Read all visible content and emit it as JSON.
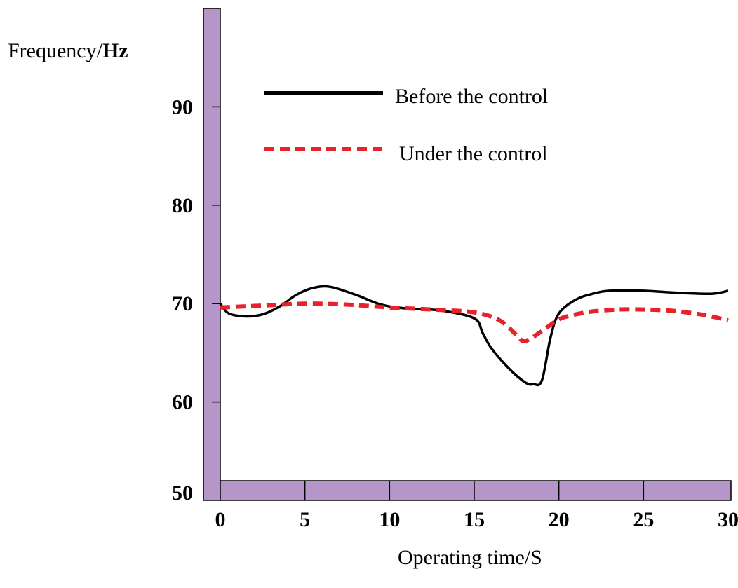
{
  "chart_data": {
    "type": "line",
    "ylabel_prefix": "Frequency/",
    "ylabel_unit": "Hz",
    "xlabel": "Operating time/S",
    "xlim": [
      0,
      30
    ],
    "ylim": [
      50,
      100
    ],
    "xticks": [
      0,
      5,
      10,
      15,
      20,
      25,
      30
    ],
    "yticks": [
      50,
      60,
      70,
      80,
      90
    ],
    "grid": false,
    "legend_position": "top-right",
    "axis_bar_color": "#b497c8",
    "series": [
      {
        "name": "Before the control",
        "color": "#000000",
        "style": "solid",
        "x": [
          0,
          0.5,
          1.5,
          2.5,
          3.5,
          4.5,
          5.5,
          6.5,
          8,
          9.5,
          11,
          13,
          15,
          15.5,
          16,
          17,
          18,
          18.5,
          19,
          19.5,
          20,
          21,
          22,
          23,
          25,
          27,
          29,
          30
        ],
        "y": [
          70,
          69,
          68.7,
          68.9,
          69.7,
          70.9,
          71.6,
          71.7,
          70.9,
          69.9,
          69.5,
          69.3,
          68.5,
          67,
          65.5,
          63.5,
          62,
          61.8,
          62.2,
          66.5,
          69,
          70.4,
          71,
          71.3,
          71.3,
          71.1,
          71,
          71.3
        ]
      },
      {
        "name": "Under the control",
        "color": "#e8212b",
        "style": "dashed",
        "x": [
          0,
          2.5,
          5,
          7.5,
          10,
          12.5,
          15,
          16.5,
          17.5,
          18,
          19,
          20,
          21,
          22,
          23.5,
          25,
          26.5,
          28,
          29,
          30
        ],
        "y": [
          69.6,
          69.8,
          70,
          69.9,
          69.6,
          69.4,
          69.1,
          68.3,
          66.8,
          66.2,
          67.2,
          68.4,
          68.9,
          69.2,
          69.4,
          69.4,
          69.3,
          69.0,
          68.7,
          68.3
        ]
      }
    ]
  }
}
